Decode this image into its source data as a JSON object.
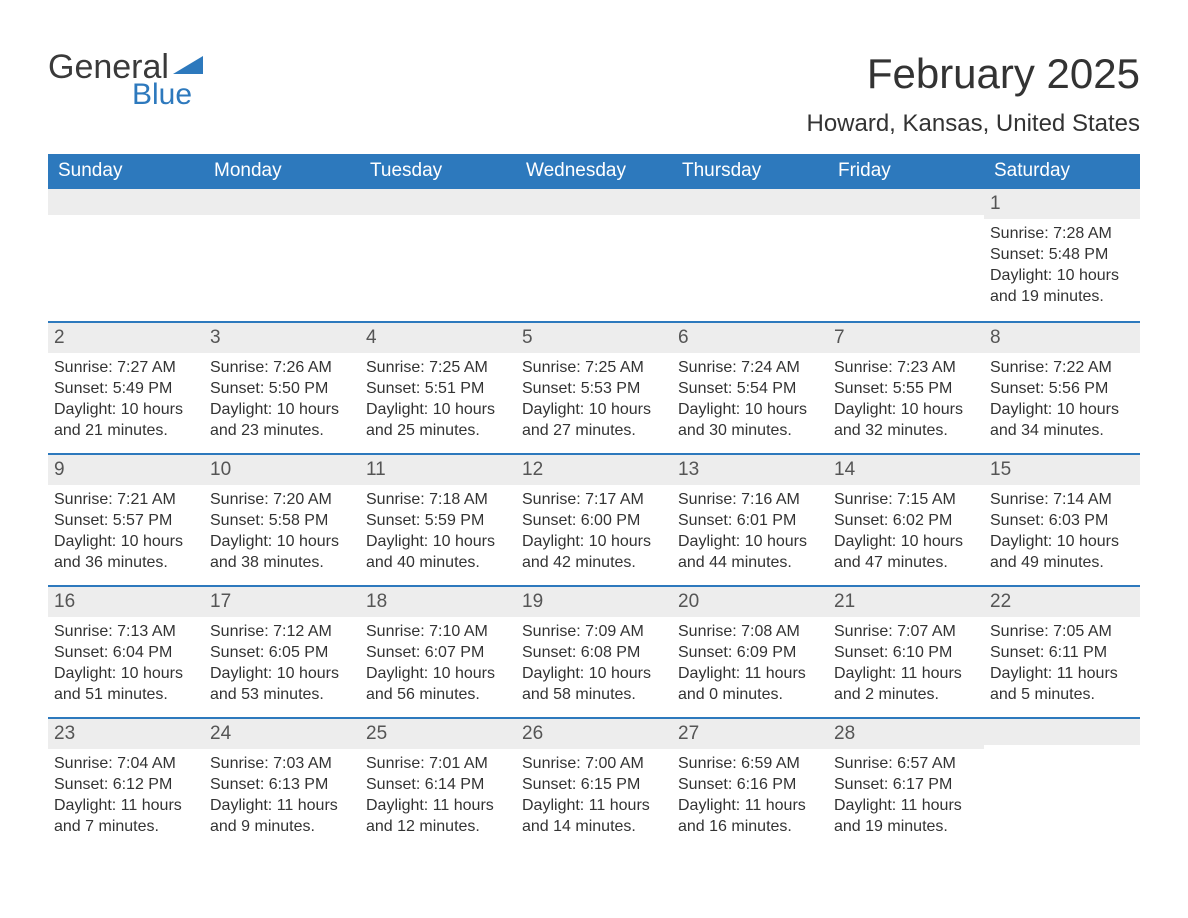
{
  "logo": {
    "word1": "General",
    "word2": "Blue"
  },
  "title": "February 2025",
  "location": "Howard, Kansas, United States",
  "header_bg": "#2d79bd",
  "header_fg": "#ffffff",
  "band_bg": "#ededed",
  "week_border": "#2d79bd",
  "daysOfWeek": [
    "Sunday",
    "Monday",
    "Tuesday",
    "Wednesday",
    "Thursday",
    "Friday",
    "Saturday"
  ],
  "weeks": [
    [
      {
        "n": "",
        "sr": "",
        "ss": "",
        "dl": ""
      },
      {
        "n": "",
        "sr": "",
        "ss": "",
        "dl": ""
      },
      {
        "n": "",
        "sr": "",
        "ss": "",
        "dl": ""
      },
      {
        "n": "",
        "sr": "",
        "ss": "",
        "dl": ""
      },
      {
        "n": "",
        "sr": "",
        "ss": "",
        "dl": ""
      },
      {
        "n": "",
        "sr": "",
        "ss": "",
        "dl": ""
      },
      {
        "n": "1",
        "sr": "Sunrise: 7:28 AM",
        "ss": "Sunset: 5:48 PM",
        "dl": "Daylight: 10 hours and 19 minutes."
      }
    ],
    [
      {
        "n": "2",
        "sr": "Sunrise: 7:27 AM",
        "ss": "Sunset: 5:49 PM",
        "dl": "Daylight: 10 hours and 21 minutes."
      },
      {
        "n": "3",
        "sr": "Sunrise: 7:26 AM",
        "ss": "Sunset: 5:50 PM",
        "dl": "Daylight: 10 hours and 23 minutes."
      },
      {
        "n": "4",
        "sr": "Sunrise: 7:25 AM",
        "ss": "Sunset: 5:51 PM",
        "dl": "Daylight: 10 hours and 25 minutes."
      },
      {
        "n": "5",
        "sr": "Sunrise: 7:25 AM",
        "ss": "Sunset: 5:53 PM",
        "dl": "Daylight: 10 hours and 27 minutes."
      },
      {
        "n": "6",
        "sr": "Sunrise: 7:24 AM",
        "ss": "Sunset: 5:54 PM",
        "dl": "Daylight: 10 hours and 30 minutes."
      },
      {
        "n": "7",
        "sr": "Sunrise: 7:23 AM",
        "ss": "Sunset: 5:55 PM",
        "dl": "Daylight: 10 hours and 32 minutes."
      },
      {
        "n": "8",
        "sr": "Sunrise: 7:22 AM",
        "ss": "Sunset: 5:56 PM",
        "dl": "Daylight: 10 hours and 34 minutes."
      }
    ],
    [
      {
        "n": "9",
        "sr": "Sunrise: 7:21 AM",
        "ss": "Sunset: 5:57 PM",
        "dl": "Daylight: 10 hours and 36 minutes."
      },
      {
        "n": "10",
        "sr": "Sunrise: 7:20 AM",
        "ss": "Sunset: 5:58 PM",
        "dl": "Daylight: 10 hours and 38 minutes."
      },
      {
        "n": "11",
        "sr": "Sunrise: 7:18 AM",
        "ss": "Sunset: 5:59 PM",
        "dl": "Daylight: 10 hours and 40 minutes."
      },
      {
        "n": "12",
        "sr": "Sunrise: 7:17 AM",
        "ss": "Sunset: 6:00 PM",
        "dl": "Daylight: 10 hours and 42 minutes."
      },
      {
        "n": "13",
        "sr": "Sunrise: 7:16 AM",
        "ss": "Sunset: 6:01 PM",
        "dl": "Daylight: 10 hours and 44 minutes."
      },
      {
        "n": "14",
        "sr": "Sunrise: 7:15 AM",
        "ss": "Sunset: 6:02 PM",
        "dl": "Daylight: 10 hours and 47 minutes."
      },
      {
        "n": "15",
        "sr": "Sunrise: 7:14 AM",
        "ss": "Sunset: 6:03 PM",
        "dl": "Daylight: 10 hours and 49 minutes."
      }
    ],
    [
      {
        "n": "16",
        "sr": "Sunrise: 7:13 AM",
        "ss": "Sunset: 6:04 PM",
        "dl": "Daylight: 10 hours and 51 minutes."
      },
      {
        "n": "17",
        "sr": "Sunrise: 7:12 AM",
        "ss": "Sunset: 6:05 PM",
        "dl": "Daylight: 10 hours and 53 minutes."
      },
      {
        "n": "18",
        "sr": "Sunrise: 7:10 AM",
        "ss": "Sunset: 6:07 PM",
        "dl": "Daylight: 10 hours and 56 minutes."
      },
      {
        "n": "19",
        "sr": "Sunrise: 7:09 AM",
        "ss": "Sunset: 6:08 PM",
        "dl": "Daylight: 10 hours and 58 minutes."
      },
      {
        "n": "20",
        "sr": "Sunrise: 7:08 AM",
        "ss": "Sunset: 6:09 PM",
        "dl": "Daylight: 11 hours and 0 minutes."
      },
      {
        "n": "21",
        "sr": "Sunrise: 7:07 AM",
        "ss": "Sunset: 6:10 PM",
        "dl": "Daylight: 11 hours and 2 minutes."
      },
      {
        "n": "22",
        "sr": "Sunrise: 7:05 AM",
        "ss": "Sunset: 6:11 PM",
        "dl": "Daylight: 11 hours and 5 minutes."
      }
    ],
    [
      {
        "n": "23",
        "sr": "Sunrise: 7:04 AM",
        "ss": "Sunset: 6:12 PM",
        "dl": "Daylight: 11 hours and 7 minutes."
      },
      {
        "n": "24",
        "sr": "Sunrise: 7:03 AM",
        "ss": "Sunset: 6:13 PM",
        "dl": "Daylight: 11 hours and 9 minutes."
      },
      {
        "n": "25",
        "sr": "Sunrise: 7:01 AM",
        "ss": "Sunset: 6:14 PM",
        "dl": "Daylight: 11 hours and 12 minutes."
      },
      {
        "n": "26",
        "sr": "Sunrise: 7:00 AM",
        "ss": "Sunset: 6:15 PM",
        "dl": "Daylight: 11 hours and 14 minutes."
      },
      {
        "n": "27",
        "sr": "Sunrise: 6:59 AM",
        "ss": "Sunset: 6:16 PM",
        "dl": "Daylight: 11 hours and 16 minutes."
      },
      {
        "n": "28",
        "sr": "Sunrise: 6:57 AM",
        "ss": "Sunset: 6:17 PM",
        "dl": "Daylight: 11 hours and 19 minutes."
      },
      {
        "n": "",
        "sr": "",
        "ss": "",
        "dl": ""
      }
    ]
  ]
}
